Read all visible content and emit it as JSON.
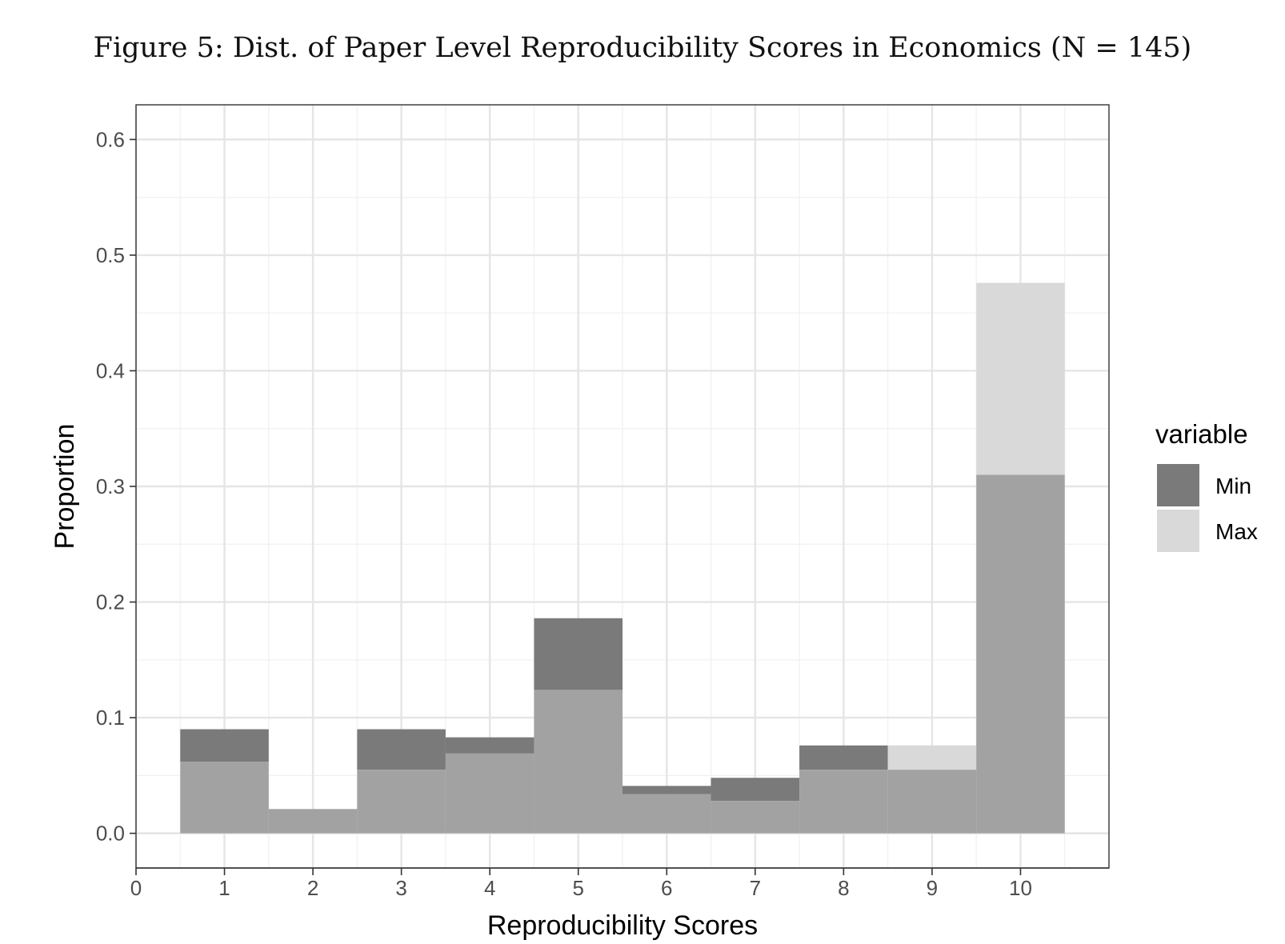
{
  "figure": {
    "title": "Figure 5: Dist. of Paper Level Reproducibility Scores in Economics (N = 145)"
  },
  "chart_data": {
    "type": "bar",
    "xlabel": "Reproducibility Scores",
    "ylabel": "Proportion",
    "xlim": [
      0,
      11
    ],
    "ylim": [
      -0.03,
      0.63
    ],
    "x_ticks": [
      "0",
      "1",
      "2",
      "3",
      "4",
      "5",
      "6",
      "7",
      "8",
      "9",
      "10"
    ],
    "y_ticks": [
      "0.0",
      "0.1",
      "0.2",
      "0.3",
      "0.4",
      "0.5",
      "0.6"
    ],
    "grid": true,
    "legend_position": "right",
    "legend": {
      "title": "variable"
    },
    "categories": [
      1,
      2,
      3,
      4,
      5,
      6,
      7,
      8,
      9,
      10
    ],
    "series": [
      {
        "name": "Min",
        "color": "#7a7a7a",
        "values": [
          0.09,
          0.021,
          0.09,
          0.083,
          0.186,
          0.041,
          0.048,
          0.076,
          0.055,
          0.31
        ]
      },
      {
        "name": "Max",
        "color": "#d9d9d9",
        "values": [
          0.062,
          0.021,
          0.055,
          0.069,
          0.124,
          0.034,
          0.028,
          0.055,
          0.076,
          0.476
        ]
      }
    ],
    "overlap_color": "#a2a2a2"
  }
}
